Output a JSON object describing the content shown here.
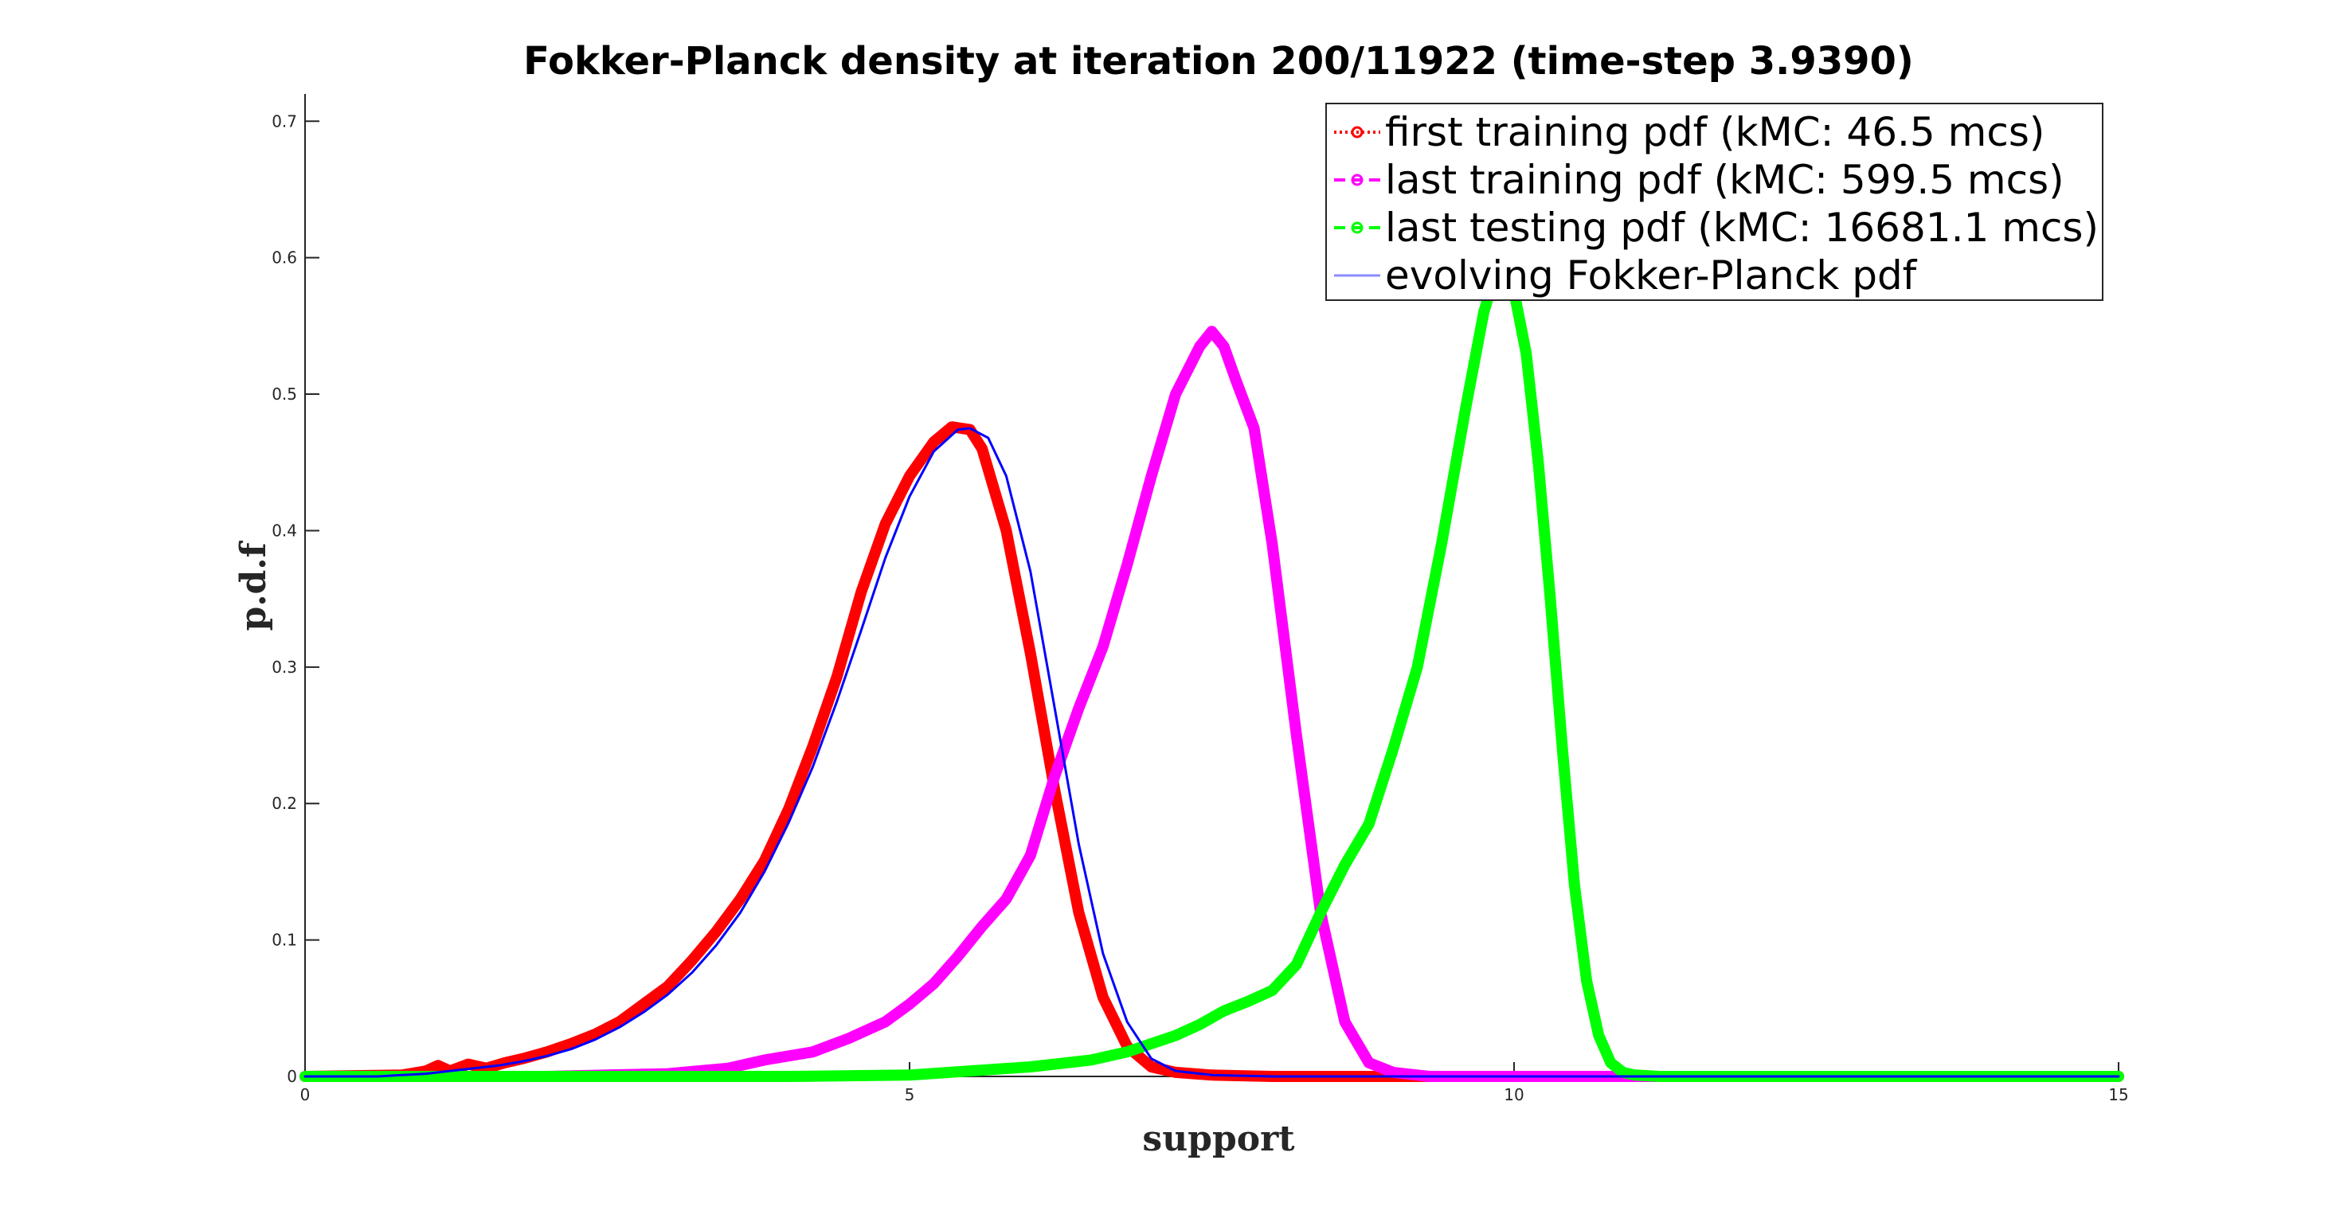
{
  "chart_data": {
    "type": "line",
    "title": "Fokker-Planck density at iteration 200/11922 (time-step 3.9390)",
    "xlabel": "support",
    "ylabel": "p.d.f",
    "xlim": [
      0,
      15
    ],
    "ylim": [
      0,
      0.72
    ],
    "xticks": [
      0,
      5,
      10,
      15
    ],
    "yticks": [
      0,
      0.1,
      0.2,
      0.3,
      0.4,
      0.5,
      0.6,
      0.7
    ],
    "grid": false,
    "legend_position": "top-right",
    "series": [
      {
        "name": "first training pdf (kMC: 46.5 mcs)",
        "color": "#ff0000",
        "style": "thick",
        "points": [
          [
            0,
            0
          ],
          [
            0.8,
            0.001
          ],
          [
            1.0,
            0.004
          ],
          [
            1.1,
            0.008
          ],
          [
            1.2,
            0.004
          ],
          [
            1.35,
            0.009
          ],
          [
            1.5,
            0.006
          ],
          [
            1.65,
            0.01
          ],
          [
            1.8,
            0.013
          ],
          [
            2.0,
            0.018
          ],
          [
            2.2,
            0.024
          ],
          [
            2.4,
            0.031
          ],
          [
            2.6,
            0.04
          ],
          [
            2.8,
            0.053
          ],
          [
            3.0,
            0.066
          ],
          [
            3.2,
            0.085
          ],
          [
            3.4,
            0.106
          ],
          [
            3.6,
            0.13
          ],
          [
            3.8,
            0.158
          ],
          [
            4.0,
            0.196
          ],
          [
            4.2,
            0.242
          ],
          [
            4.4,
            0.293
          ],
          [
            4.6,
            0.355
          ],
          [
            4.8,
            0.405
          ],
          [
            5.0,
            0.44
          ],
          [
            5.2,
            0.465
          ],
          [
            5.35,
            0.476
          ],
          [
            5.5,
            0.474
          ],
          [
            5.6,
            0.46
          ],
          [
            5.8,
            0.4
          ],
          [
            6.0,
            0.31
          ],
          [
            6.2,
            0.21
          ],
          [
            6.4,
            0.12
          ],
          [
            6.6,
            0.058
          ],
          [
            6.8,
            0.022
          ],
          [
            7.0,
            0.007
          ],
          [
            7.2,
            0.003
          ],
          [
            7.5,
            0.001
          ],
          [
            8,
            0
          ],
          [
            15,
            0
          ]
        ]
      },
      {
        "name": "last training pdf (kMC: 599.5 mcs)",
        "color": "#ff00ff",
        "style": "thick",
        "points": [
          [
            0,
            0
          ],
          [
            2,
            0
          ],
          [
            3,
            0.002
          ],
          [
            3.5,
            0.006
          ],
          [
            3.8,
            0.012
          ],
          [
            4.2,
            0.018
          ],
          [
            4.5,
            0.028
          ],
          [
            4.8,
            0.04
          ],
          [
            5.0,
            0.053
          ],
          [
            5.2,
            0.068
          ],
          [
            5.4,
            0.088
          ],
          [
            5.6,
            0.11
          ],
          [
            5.8,
            0.13
          ],
          [
            6.0,
            0.162
          ],
          [
            6.2,
            0.22
          ],
          [
            6.4,
            0.27
          ],
          [
            6.6,
            0.315
          ],
          [
            6.8,
            0.375
          ],
          [
            7.0,
            0.44
          ],
          [
            7.2,
            0.5
          ],
          [
            7.4,
            0.535
          ],
          [
            7.5,
            0.546
          ],
          [
            7.6,
            0.535
          ],
          [
            7.7,
            0.51
          ],
          [
            7.85,
            0.475
          ],
          [
            8.0,
            0.39
          ],
          [
            8.2,
            0.25
          ],
          [
            8.4,
            0.12
          ],
          [
            8.6,
            0.04
          ],
          [
            8.8,
            0.01
          ],
          [
            9.0,
            0.003
          ],
          [
            9.3,
            0
          ],
          [
            15,
            0
          ]
        ]
      },
      {
        "name": "last testing pdf (kMC: 16681.1 mcs)",
        "color": "#00ff00",
        "style": "thick",
        "points": [
          [
            0,
            0
          ],
          [
            4,
            0
          ],
          [
            5,
            0.001
          ],
          [
            5.5,
            0.004
          ],
          [
            6.0,
            0.007
          ],
          [
            6.5,
            0.012
          ],
          [
            6.8,
            0.018
          ],
          [
            7.0,
            0.024
          ],
          [
            7.2,
            0.03
          ],
          [
            7.4,
            0.038
          ],
          [
            7.6,
            0.048
          ],
          [
            7.8,
            0.055
          ],
          [
            8.0,
            0.063
          ],
          [
            8.2,
            0.082
          ],
          [
            8.4,
            0.12
          ],
          [
            8.6,
            0.155
          ],
          [
            8.8,
            0.185
          ],
          [
            9.0,
            0.24
          ],
          [
            9.2,
            0.3
          ],
          [
            9.4,
            0.39
          ],
          [
            9.6,
            0.49
          ],
          [
            9.75,
            0.56
          ],
          [
            9.85,
            0.59
          ],
          [
            10.0,
            0.575
          ],
          [
            10.1,
            0.53
          ],
          [
            10.2,
            0.45
          ],
          [
            10.3,
            0.35
          ],
          [
            10.4,
            0.24
          ],
          [
            10.5,
            0.14
          ],
          [
            10.6,
            0.07
          ],
          [
            10.7,
            0.03
          ],
          [
            10.8,
            0.01
          ],
          [
            10.9,
            0.003
          ],
          [
            11.0,
            0.001
          ],
          [
            11.2,
            0
          ],
          [
            15,
            0
          ]
        ]
      },
      {
        "name": "evolving Fokker-Planck pdf",
        "color": "#0000ff",
        "style": "thin",
        "points": [
          [
            0,
            0
          ],
          [
            0.6,
            0
          ],
          [
            0.8,
            0.001
          ],
          [
            1.0,
            0.002
          ],
          [
            1.2,
            0.004
          ],
          [
            1.4,
            0.006
          ],
          [
            1.6,
            0.008
          ],
          [
            1.8,
            0.011
          ],
          [
            2.0,
            0.015
          ],
          [
            2.2,
            0.02
          ],
          [
            2.4,
            0.027
          ],
          [
            2.6,
            0.036
          ],
          [
            2.8,
            0.047
          ],
          [
            3.0,
            0.06
          ],
          [
            3.2,
            0.076
          ],
          [
            3.4,
            0.096
          ],
          [
            3.6,
            0.12
          ],
          [
            3.8,
            0.15
          ],
          [
            4.0,
            0.186
          ],
          [
            4.2,
            0.227
          ],
          [
            4.4,
            0.275
          ],
          [
            4.6,
            0.327
          ],
          [
            4.8,
            0.38
          ],
          [
            5.0,
            0.425
          ],
          [
            5.2,
            0.458
          ],
          [
            5.4,
            0.474
          ],
          [
            5.5,
            0.475
          ],
          [
            5.65,
            0.468
          ],
          [
            5.8,
            0.44
          ],
          [
            6.0,
            0.37
          ],
          [
            6.2,
            0.27
          ],
          [
            6.4,
            0.17
          ],
          [
            6.6,
            0.09
          ],
          [
            6.8,
            0.04
          ],
          [
            7.0,
            0.013
          ],
          [
            7.2,
            0.004
          ],
          [
            7.5,
            0.001
          ],
          [
            8,
            0
          ],
          [
            15,
            0
          ]
        ]
      }
    ]
  }
}
